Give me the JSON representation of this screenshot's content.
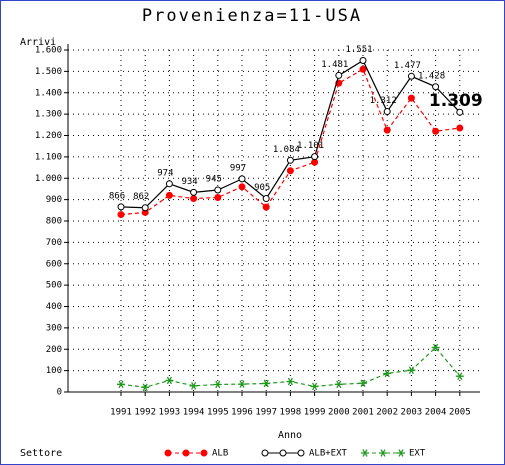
{
  "chart_data": {
    "type": "line",
    "title": "Provenienza=11-USA",
    "y_label": "Arrivi",
    "x_label": "Anno",
    "categories": [
      "1991",
      "1992",
      "1993",
      "1994",
      "1995",
      "1996",
      "1997",
      "1998",
      "1999",
      "2000",
      "2001",
      "2002",
      "2003",
      "2004",
      "2005"
    ],
    "ylim": [
      0,
      1600
    ],
    "yticks": [
      0,
      100,
      200,
      300,
      400,
      500,
      600,
      700,
      800,
      900,
      {
        "value": 1000,
        "label": "1.000"
      },
      {
        "value": 1100,
        "label": "1.100"
      },
      {
        "value": 1200,
        "label": "1.200"
      },
      {
        "value": 1300,
        "label": "1.300"
      },
      {
        "value": 1400,
        "label": "1.400"
      },
      {
        "value": 1500,
        "label": "1.500"
      },
      {
        "value": 1600,
        "label": "1.600"
      }
    ],
    "grid": true,
    "legend_title": "Settore",
    "legend": "bottom",
    "series": [
      {
        "name": "ALB",
        "color": "#ff0000",
        "dashed": true,
        "marker": "filled-circle",
        "values": [
          830,
          840,
          920,
          905,
          910,
          960,
          865,
          1035,
          1075,
          1445,
          1510,
          1225,
          1375,
          1220,
          1235
        ]
      },
      {
        "name": "ALB+EXT",
        "color": "#000000",
        "dashed": false,
        "marker": "open-circle",
        "values": [
          866,
          862,
          974,
          934,
          945,
          997,
          905,
          1084,
          1101,
          1481,
          1551,
          1312,
          1477,
          1428,
          1309
        ],
        "value_labels": [
          "866",
          "862",
          "974",
          "934",
          "945",
          "997",
          "905",
          "1.084",
          "1.101",
          "1.481",
          "1.551",
          "1.312",
          "1.477",
          "1.428",
          "1.309"
        ]
      },
      {
        "name": "EXT",
        "color": "#229922",
        "dashed": true,
        "marker": "star",
        "values": [
          36,
          22,
          54,
          29,
          35,
          37,
          40,
          49,
          26,
          36,
          41,
          87,
          102,
          208,
          74
        ]
      }
    ]
  }
}
